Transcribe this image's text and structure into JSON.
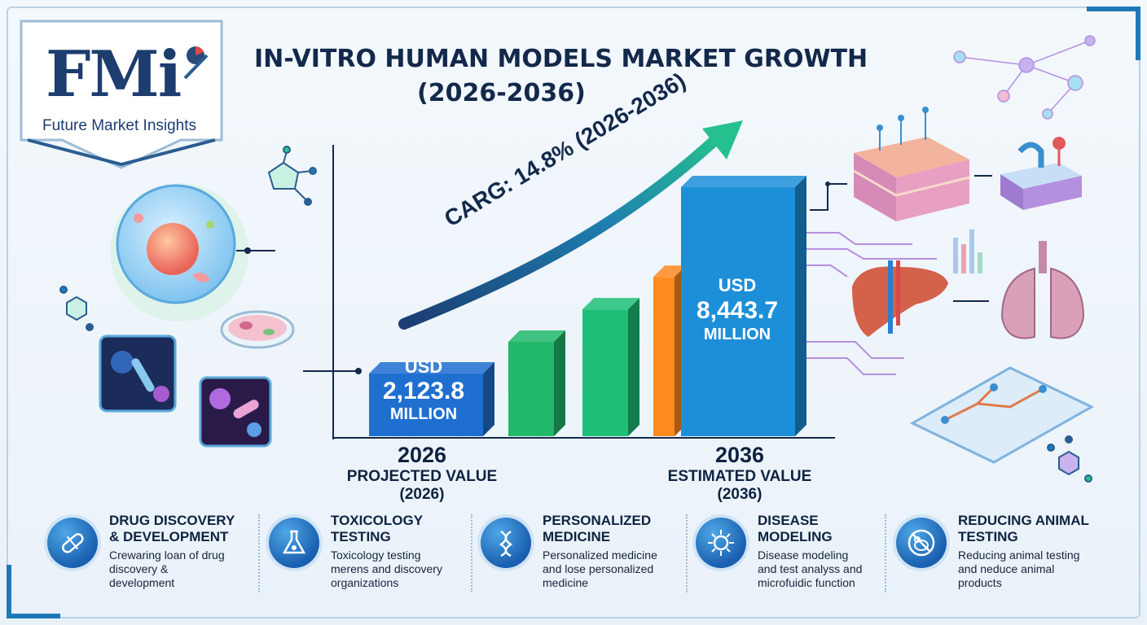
{
  "logo": {
    "mark": "FMi",
    "subtitle": "Future Market Insights"
  },
  "header": {
    "title_line1": "IN-VITRO HUMAN MODELS MARKET GROWTH",
    "title_line2": "(2026-2036)"
  },
  "chart_data": {
    "type": "bar",
    "categories": [
      "2026",
      "",
      "",
      "",
      "2036"
    ],
    "values": [
      2123.8,
      3200,
      4300,
      5400,
      8443.7
    ],
    "unit": "USD Million",
    "start": {
      "year": "2026",
      "currency": "USD",
      "value": "2,123.8",
      "unit": "MILLION",
      "caption_line1": "PROJECTED VALUE",
      "caption_line2": "(2026)"
    },
    "end": {
      "year": "2036",
      "currency": "USD",
      "value": "8,443.7",
      "unit": "MILLION",
      "caption_line1": "ESTIMATED VALUE",
      "caption_line2": "(2036)"
    },
    "cagr_label": "CARG: 14.8% (2026-2036)",
    "colors": [
      "#1f6fd0",
      "#22b86a",
      "#1fbf78",
      "#ff8a1e",
      "#1d8fd8"
    ]
  },
  "features": [
    {
      "icon": "capsule-icon",
      "title_line1": "DRUG DISCOVERY",
      "title_line2": "& DEVELOPMENT",
      "desc_line1": "Crewaring loan of drug",
      "desc_line2": "discovery &",
      "desc_line3": "development"
    },
    {
      "icon": "flask-icon",
      "title_line1": "TOXICOLOGY",
      "title_line2": "TESTING",
      "desc_line1": "Toxicology testing",
      "desc_line2": "merens and discovery",
      "desc_line3": "organizations"
    },
    {
      "icon": "dna-icon",
      "title_line1": "PERSONALIZED",
      "title_line2": "MEDICINE",
      "desc_line1": "Personalized medicine",
      "desc_line2": "and lose personalized",
      "desc_line3": "medicine"
    },
    {
      "icon": "virus-icon",
      "title_line1": "DISEASE",
      "title_line2": "MODELING",
      "desc_line1": "Disease modeling",
      "desc_line2": "and test analyss and",
      "desc_line3": "microfuidic function"
    },
    {
      "icon": "no-mouse-icon",
      "title_line1": "REDUCING ANIMAL",
      "title_line2": "TESTING",
      "desc_line1": "Reducing animal testing",
      "desc_line2": "and neduce animal",
      "desc_line3": "products"
    }
  ]
}
